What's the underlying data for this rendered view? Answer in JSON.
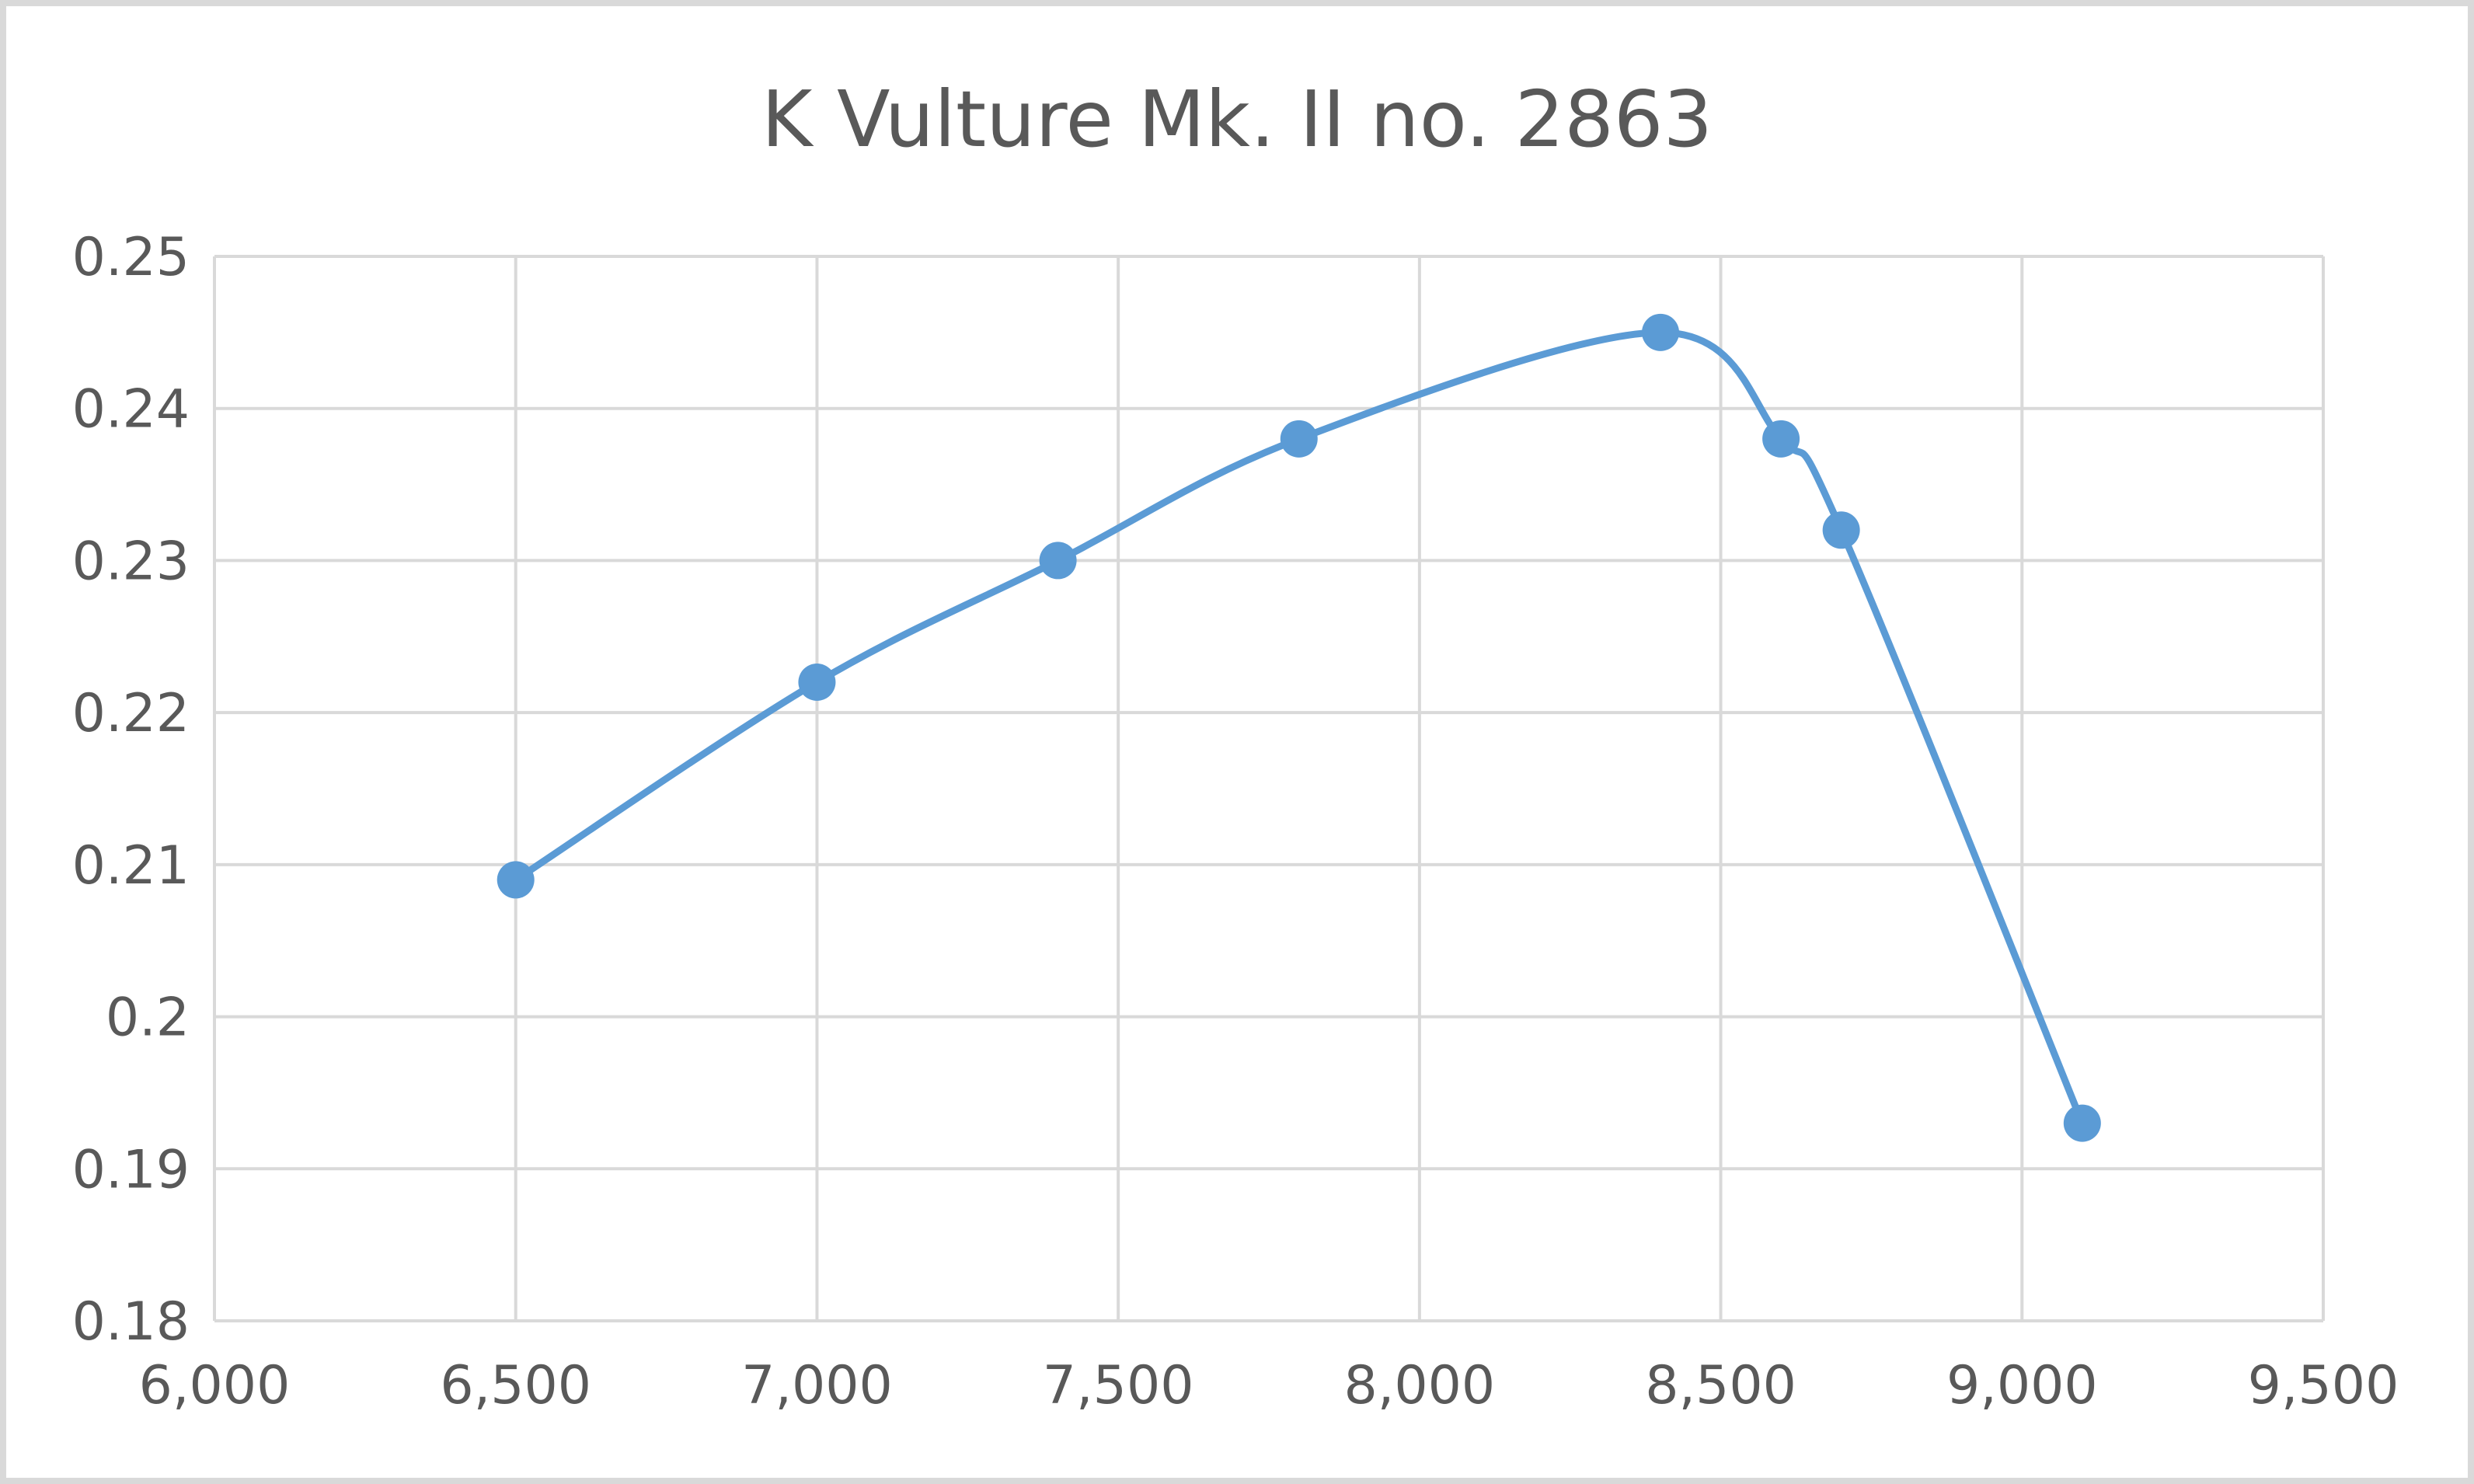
{
  "chart_data": {
    "type": "line",
    "title": "K Vulture Mk. II no. 2863",
    "xlabel": "",
    "ylabel": "",
    "xlim": [
      6000,
      9500
    ],
    "ylim": [
      0.18,
      0.25
    ],
    "x_ticks": [
      6000,
      6500,
      7000,
      7500,
      8000,
      8500,
      9000,
      9500
    ],
    "x_tick_labels": [
      "6,000",
      "6,500",
      "7,000",
      "7,500",
      "8,000",
      "8,500",
      "9,000",
      "9,500"
    ],
    "y_ticks": [
      0.18,
      0.19,
      0.2,
      0.21,
      0.22,
      0.23,
      0.24,
      0.25
    ],
    "y_tick_labels": [
      "0.18",
      "0.19",
      "0.2",
      "0.21",
      "0.22",
      "0.23",
      "0.24",
      "0.25"
    ],
    "grid": true,
    "smoothed": true,
    "legend": "none",
    "series": [
      {
        "color": "#5b9bd5",
        "x": [
          6500,
          7000,
          7400,
          7800,
          8400,
          8600,
          8700,
          9100
        ],
        "y": [
          0.209,
          0.222,
          0.23,
          0.238,
          0.245,
          0.238,
          0.232,
          0.193
        ]
      }
    ]
  }
}
